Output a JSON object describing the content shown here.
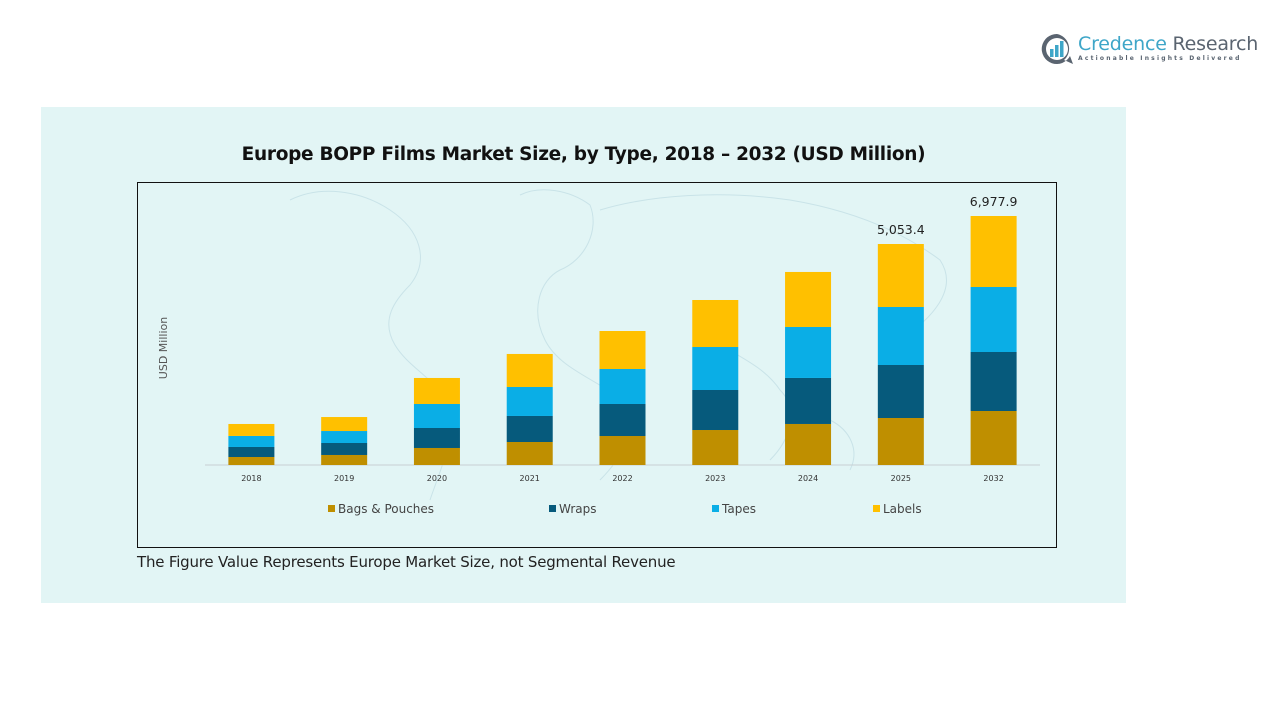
{
  "branding": {
    "name_part1": "Credence",
    "name_part2": "Research",
    "tagline": "Actionable Insights Delivered"
  },
  "footnote": "The Figure Value Represents Europe Market Size, not Segmental Revenue",
  "colors": {
    "panel_bg": "#e2f5f5",
    "bags_pouches": "#bf8f00",
    "wraps": "#065a7c",
    "tapes": "#0aaee6",
    "labels": "#ffc000"
  },
  "chart_data": {
    "type": "bar",
    "stacked": true,
    "title": "Europe BOPP Films Market Size, by Type, 2018 – 2032 (USD Million)",
    "xlabel": "",
    "ylabel": "USD Million",
    "grid": false,
    "legend_position": "bottom",
    "categories": [
      "2018",
      "2019",
      "2020",
      "2021",
      "2022",
      "2023",
      "2024",
      "2025",
      "2032"
    ],
    "series": [
      {
        "name": "Bags & Pouches",
        "color": "#bf8f00",
        "values": [
          183,
          229,
          389,
          526,
          663,
          800,
          938,
          1074.7,
          1513.3
        ]
      },
      {
        "name": "Wraps",
        "color": "#065a7c",
        "values": [
          229,
          274,
          457,
          595,
          732,
          915,
          1052,
          1212.0,
          1653.4
        ]
      },
      {
        "name": "Tapes",
        "color": "#0aaee6",
        "values": [
          252,
          274,
          549,
          663,
          800,
          983,
          1166,
          1326.4,
          1821.5
        ]
      },
      {
        "name": "Labels",
        "color": "#ffc000",
        "values": [
          274,
          320,
          595,
          755,
          869,
          1075,
          1258,
          1440.3,
          1989.7
        ]
      }
    ],
    "totals_labeled": [
      {
        "category": "2025",
        "label": "5,053.4"
      },
      {
        "category": "2032",
        "label": "6,977.9"
      }
    ],
    "ylim": [
      0,
      8000
    ]
  }
}
